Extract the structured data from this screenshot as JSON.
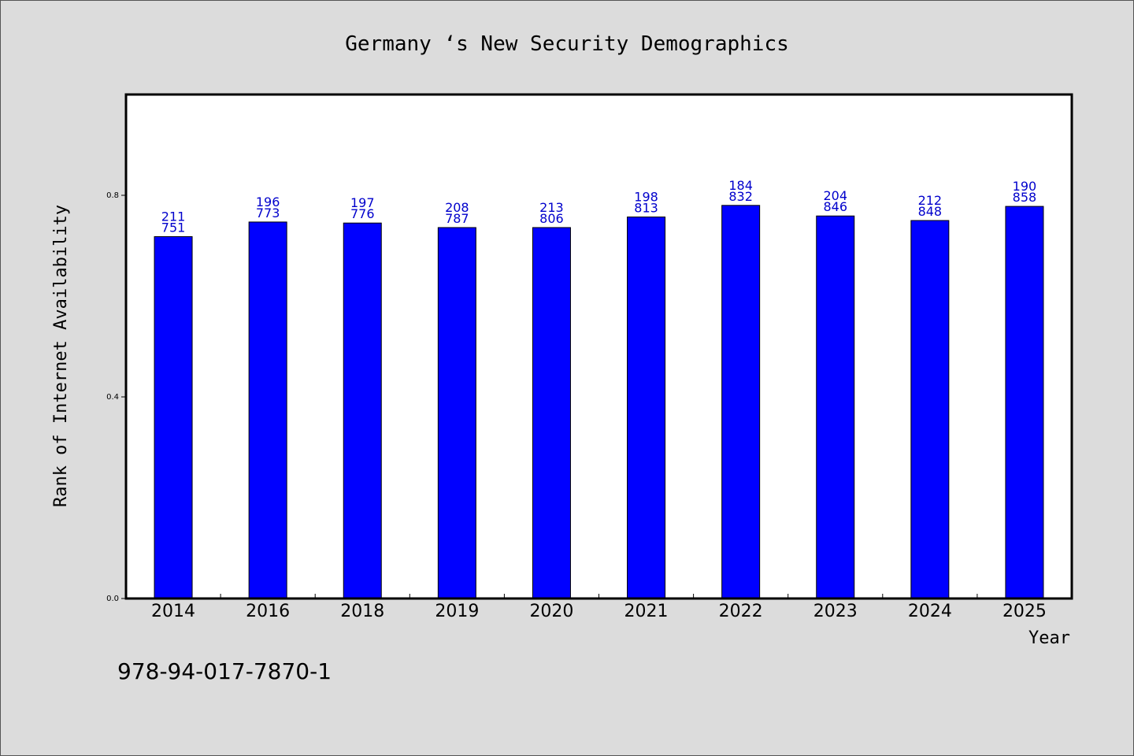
{
  "colors": {
    "background": "#dcdcdc",
    "plot_background": "#ffffff",
    "bar": "#0000ff",
    "data_label": "#0000cc",
    "axis": "#000000"
  },
  "footer": {
    "isbn": "978-94-017-7870-1"
  },
  "chart_data": {
    "type": "bar",
    "title": "Germany ‘s New Security Demographics",
    "xlabel": "Year",
    "ylabel": "Rank of Internet Availability",
    "categories": [
      "2014",
      "2016",
      "2018",
      "2019",
      "2020",
      "2021",
      "2022",
      "2023",
      "2024",
      "2025"
    ],
    "values": [
      0.718,
      0.747,
      0.745,
      0.736,
      0.736,
      0.757,
      0.78,
      0.759,
      0.75,
      0.778
    ],
    "label_top": [
      "211",
      "196",
      "197",
      "208",
      "213",
      "198",
      "184",
      "204",
      "212",
      "190"
    ],
    "label_bottom": [
      "751",
      "773",
      "776",
      "787",
      "806",
      "813",
      "832",
      "846",
      "848",
      "858"
    ],
    "ylim": [
      0,
      1.0
    ],
    "yticks": [
      0.0,
      0.4,
      0.8
    ],
    "ytick_labels": [
      "0.0",
      "0.4",
      "0.8"
    ],
    "grid": false,
    "legend": "none"
  }
}
